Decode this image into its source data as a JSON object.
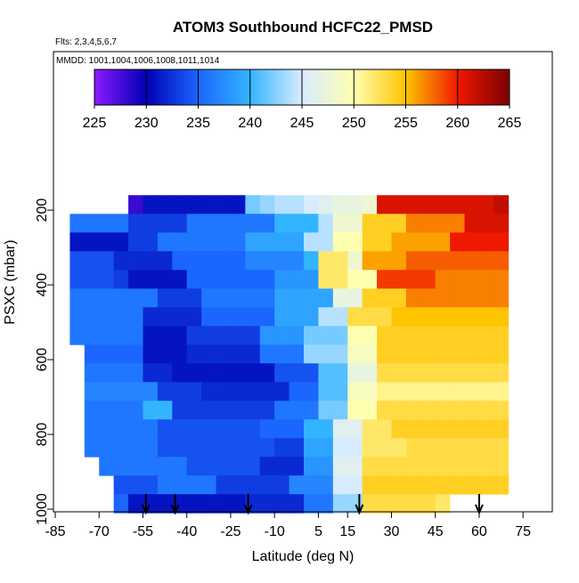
{
  "chart_data": {
    "type": "heatmap",
    "title": "ATOM3 Southbound HCFC22_PMSD",
    "subtitle": "Flts: 2,3,4,5,6,7",
    "annotation": "MMDD: 1001,1004,1006,1008,1011,1014",
    "x_label": "Latitude (deg N)",
    "y_label": "PSXC (mbar)",
    "xlim": [
      -85,
      85
    ],
    "xticks": [
      -85,
      -70,
      -55,
      -40,
      -25,
      -10,
      5,
      15,
      30,
      45,
      60,
      75
    ],
    "ylim": [
      1007,
      -224
    ],
    "yticks": [
      200,
      400,
      600,
      800,
      1000
    ],
    "zlim": [
      225,
      265
    ],
    "zticks": [
      225,
      230,
      235,
      240,
      245,
      250,
      255,
      260,
      265
    ],
    "colors": [
      "#8c1aff",
      "#0000b4",
      "#1a66ff",
      "#33b4ff",
      "#d8ecff",
      "#ffffb0",
      "#ffc400",
      "#f01800",
      "#7a0000"
    ],
    "x_edges": [
      -80,
      -75,
      -70,
      -65,
      -60,
      -55,
      -50,
      -45,
      -40,
      -35,
      -30,
      -25,
      -20,
      -15,
      -10,
      -5,
      0,
      5,
      10,
      15,
      20,
      25,
      30,
      35,
      40,
      45,
      50,
      55,
      60,
      65,
      70
    ],
    "y_edges": [
      160,
      210,
      260,
      310,
      360,
      410,
      460,
      510,
      560,
      610,
      660,
      710,
      760,
      810,
      860,
      910,
      960,
      1010
    ],
    "z": [
      [
        null,
        null,
        null,
        null,
        228,
        231,
        231,
        231,
        231,
        231,
        231,
        231,
        242,
        243,
        244,
        244,
        245,
        246,
        247,
        247,
        248,
        261,
        261,
        261,
        261,
        261,
        261,
        261,
        261,
        262
      ],
      [
        236,
        236,
        236,
        236,
        233,
        233,
        233,
        233,
        236,
        236,
        236,
        236,
        236,
        236,
        240,
        240,
        240,
        244,
        248,
        248,
        254,
        254,
        254,
        257,
        257,
        257,
        257,
        261,
        261,
        261
      ],
      [
        231,
        231,
        231,
        231,
        233,
        233,
        236,
        236,
        236,
        236,
        236,
        236,
        239,
        239,
        239,
        239,
        244,
        244,
        250,
        250,
        254,
        254,
        256,
        256,
        256,
        256,
        260,
        260,
        260,
        260
      ],
      [
        234,
        234,
        234,
        232,
        232,
        232,
        232,
        235,
        235,
        235,
        235,
        235,
        237,
        237,
        237,
        237,
        240,
        252,
        252,
        248,
        256,
        256,
        256,
        258,
        258,
        258,
        258,
        258,
        258,
        258
      ],
      [
        234,
        234,
        234,
        233,
        231,
        231,
        231,
        231,
        235,
        235,
        235,
        235,
        235,
        235,
        238,
        238,
        238,
        252,
        252,
        250,
        250,
        259,
        259,
        259,
        259,
        257,
        257,
        257,
        257,
        257
      ],
      [
        236,
        236,
        236,
        236,
        236,
        236,
        233,
        233,
        233,
        236,
        236,
        236,
        236,
        236,
        239,
        239,
        239,
        239,
        247,
        247,
        254,
        254,
        254,
        257,
        257,
        257,
        257,
        257,
        257,
        257
      ],
      [
        236,
        236,
        236,
        236,
        236,
        232,
        232,
        232,
        232,
        235,
        235,
        235,
        235,
        235,
        239,
        239,
        239,
        244,
        244,
        253,
        253,
        253,
        255,
        255,
        255,
        255,
        255,
        255,
        255,
        255
      ],
      [
        236,
        236,
        236,
        236,
        236,
        231,
        231,
        231,
        233,
        233,
        233,
        233,
        233,
        238,
        238,
        238,
        242,
        242,
        242,
        250,
        250,
        254,
        254,
        254,
        254,
        254,
        254,
        254,
        254,
        254
      ],
      [
        null,
        235,
        235,
        235,
        235,
        231,
        231,
        231,
        232,
        232,
        232,
        232,
        232,
        236,
        236,
        236,
        243,
        243,
        243,
        249,
        249,
        254,
        254,
        254,
        254,
        254,
        254,
        254,
        254,
        254
      ],
      [
        null,
        236,
        236,
        236,
        236,
        232,
        232,
        231,
        231,
        231,
        231,
        231,
        231,
        231,
        234,
        234,
        234,
        241,
        241,
        247,
        247,
        253,
        253,
        253,
        253,
        253,
        253,
        253,
        253,
        253
      ],
      [
        null,
        237,
        237,
        237,
        237,
        237,
        233,
        233,
        233,
        232,
        232,
        232,
        232,
        232,
        232,
        235,
        235,
        241,
        241,
        249,
        249,
        251,
        251,
        251,
        251,
        251,
        251,
        251,
        251,
        251
      ],
      [
        null,
        236,
        236,
        236,
        236,
        240,
        240,
        233,
        233,
        233,
        233,
        233,
        233,
        233,
        236,
        236,
        236,
        242,
        242,
        250,
        250,
        253,
        253,
        253,
        253,
        253,
        253,
        253,
        253,
        253
      ],
      [
        null,
        236,
        236,
        236,
        236,
        236,
        234,
        234,
        234,
        234,
        234,
        234,
        234,
        235,
        235,
        235,
        240,
        240,
        246,
        246,
        252,
        252,
        254,
        254,
        254,
        254,
        254,
        254,
        254,
        254
      ],
      [
        null,
        236,
        236,
        236,
        236,
        236,
        234,
        234,
        234,
        234,
        234,
        234,
        234,
        234,
        233,
        233,
        239,
        239,
        245,
        245,
        252,
        252,
        252,
        253,
        253,
        253,
        253,
        253,
        253,
        253
      ],
      [
        null,
        null,
        236,
        236,
        236,
        236,
        236,
        236,
        234,
        234,
        234,
        234,
        234,
        232,
        232,
        232,
        238,
        238,
        246,
        246,
        253,
        253,
        253,
        253,
        253,
        253,
        253,
        253,
        253,
        253
      ],
      [
        null,
        null,
        null,
        234,
        234,
        234,
        236,
        236,
        236,
        236,
        233,
        233,
        233,
        233,
        233,
        237,
        237,
        237,
        245,
        245,
        254,
        254,
        254,
        254,
        254,
        254,
        254,
        254,
        254,
        254
      ],
      [
        null,
        null,
        null,
        235,
        231,
        231,
        231,
        231,
        231,
        231,
        231,
        231,
        232,
        232,
        232,
        232,
        236,
        236,
        243,
        243,
        253,
        253,
        253,
        253,
        253,
        252,
        null,
        null,
        null,
        null
      ]
    ],
    "arrow_x": [
      -54,
      -44,
      -19,
      19,
      60
    ]
  }
}
